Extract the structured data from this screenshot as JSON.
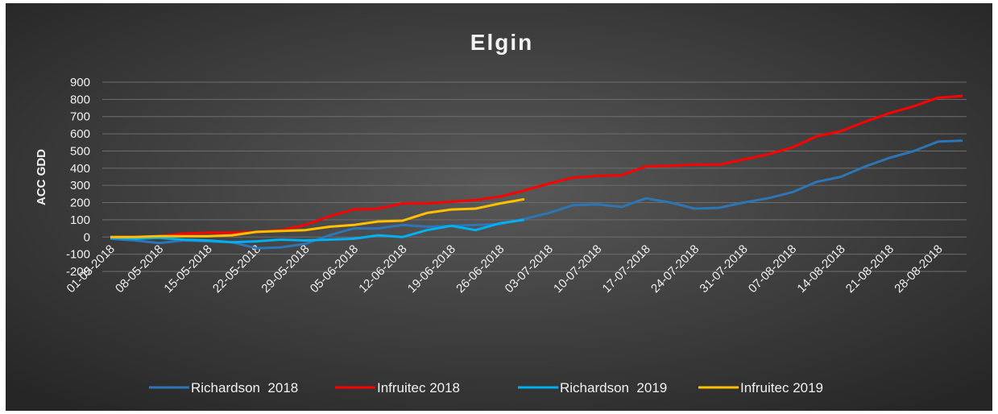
{
  "chart_data": {
    "type": "line",
    "title": "Elgin",
    "y_label": "ACC GDD",
    "x": [
      "01-05-2018",
      null,
      "08-05-2018",
      null,
      "15-05-2018",
      null,
      "22-05-2018",
      null,
      "29-05-2018",
      null,
      "05-06-2018",
      null,
      "12-06-2018",
      null,
      "19-06-2018",
      null,
      "26-06-2018",
      null,
      "03-07-2018",
      null,
      "10-07-2018",
      null,
      "17-07-2018",
      null,
      "24-07-2018",
      null,
      "31-07-2018",
      null,
      "07-08-2018",
      null,
      "14-08-2018",
      null,
      "21-08-2018",
      null,
      "28-08-2018",
      null
    ],
    "series": [
      {
        "name": "Richardson  2018",
        "color": "#2e75b6",
        "values": [
          -10,
          -20,
          -35,
          -20,
          -25,
          -30,
          -65,
          -60,
          -40,
          10,
          50,
          50,
          70,
          60,
          65,
          70,
          75,
          105,
          140,
          185,
          190,
          175,
          225,
          200,
          165,
          170,
          200,
          225,
          260,
          320,
          350,
          410,
          460,
          500,
          555,
          560
        ]
      },
      {
        "name": "Infruitec 2018",
        "color": "#ff0000",
        "values": [
          0,
          0,
          5,
          20,
          25,
          25,
          30,
          40,
          70,
          120,
          160,
          165,
          195,
          195,
          205,
          215,
          235,
          270,
          310,
          345,
          355,
          360,
          410,
          415,
          420,
          420,
          450,
          480,
          520,
          585,
          615,
          670,
          720,
          760,
          810,
          820
        ]
      },
      {
        "name": "Richardson  2019",
        "color": "#00b0f0",
        "values": [
          -5,
          -10,
          -5,
          -15,
          -20,
          -30,
          -25,
          -15,
          -20,
          -15,
          -10,
          10,
          0,
          40,
          65,
          40,
          80,
          100,
          null,
          null,
          null,
          null,
          null,
          null,
          null,
          null,
          null,
          null,
          null,
          null,
          null,
          null,
          null,
          null,
          null,
          null
        ]
      },
      {
        "name": "Infruitec 2019",
        "color": "#ffc000",
        "values": [
          0,
          0,
          5,
          5,
          5,
          10,
          30,
          35,
          40,
          60,
          70,
          90,
          95,
          140,
          160,
          165,
          195,
          220,
          null,
          null,
          null,
          null,
          null,
          null,
          null,
          null,
          null,
          null,
          null,
          null,
          null,
          null,
          null,
          null,
          null,
          null
        ]
      }
    ],
    "ylim": [
      -200,
      900
    ],
    "yticks": [
      -200,
      -100,
      0,
      100,
      200,
      300,
      400,
      500,
      600,
      700,
      800,
      900
    ],
    "grid": true,
    "legend": "bottom"
  }
}
